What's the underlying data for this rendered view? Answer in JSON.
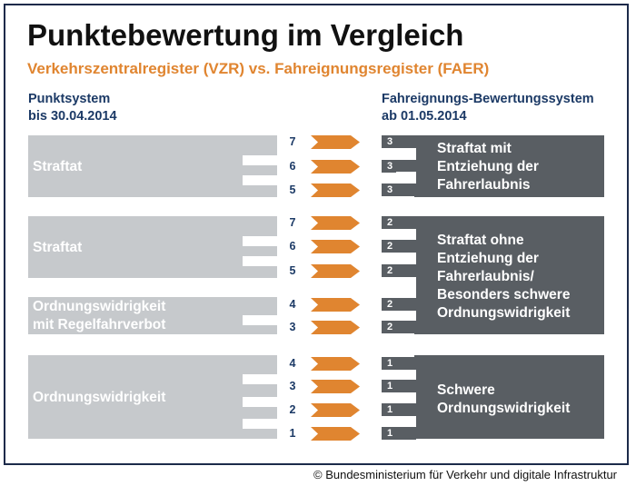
{
  "title": "Punktebewertung im Vergleich",
  "subtitle": "Verkehrszentralregister (VZR) vs. Fahreignungsregister (FAER)",
  "left_header": {
    "line1": "Punktsystem",
    "line2": "bis 30.04.2014"
  },
  "right_header": {
    "line1": "Fahreignungs-Bewertungssystem",
    "line2": "ab 01.05.2014"
  },
  "left_categories": [
    {
      "label": "Straftat"
    },
    {
      "label": "Straftat"
    },
    {
      "line1": "Ordnungswidrigkeit",
      "line2": "mit Regelfahrverbot"
    },
    {
      "label": "Ordnungswidrigkeit"
    }
  ],
  "old_points": [
    "7",
    "6",
    "5",
    "7",
    "6",
    "5",
    "4",
    "3",
    "4",
    "3",
    "2",
    "1"
  ],
  "new_points": [
    "3",
    "3",
    "3",
    "2",
    "2",
    "2",
    "2",
    "2",
    "1",
    "1",
    "1",
    "1"
  ],
  "right_categories": [
    {
      "lines": [
        "Straftat mit",
        "Entziehung der",
        "Fahrerlaubnis"
      ]
    },
    {
      "lines": [
        "Straftat ohne",
        "Entziehung der",
        "Fahrerlaubnis/",
        "Besonders schwere",
        "Ordnungswidrigkeit"
      ]
    },
    {
      "lines": [
        "Schwere",
        "Ordnungswidrigkeit"
      ]
    }
  ],
  "colors": {
    "accent": "#e08530",
    "dark_block": "#595e63",
    "light_block": "#c6c9cc",
    "header": "#1c3a66"
  },
  "copyright": "© Bundesministerium für Verkehr und digitale Infrastruktur"
}
